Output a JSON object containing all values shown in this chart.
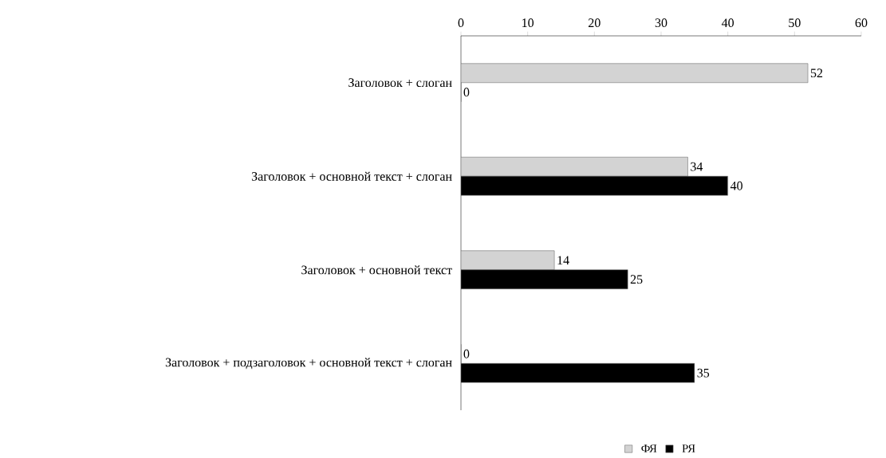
{
  "chart_data": {
    "type": "bar",
    "orientation": "horizontal",
    "categories": [
      "Заголовок + слоган",
      "Заголовок + основной текст + слоган",
      "Заголовок + основной текст",
      "Заголовок + подзаголовок + основной текст + слоган"
    ],
    "series": [
      {
        "name": "ФЯ",
        "color": "#d3d3d3",
        "values": [
          52,
          34,
          14,
          0
        ]
      },
      {
        "name": "РЯ",
        "color": "#000000",
        "values": [
          0,
          40,
          25,
          35
        ]
      }
    ],
    "xlim": [
      0,
      60
    ],
    "xticks": [
      0,
      10,
      20,
      30,
      40,
      50,
      60
    ],
    "data_labels": true,
    "legend": "bottom",
    "grid": false
  }
}
